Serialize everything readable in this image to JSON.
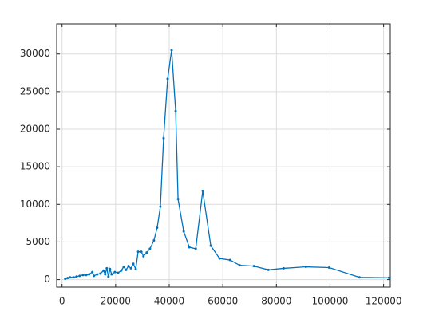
{
  "chart_data": {
    "type": "line",
    "x": [
      1200,
      2100,
      3000,
      4200,
      5400,
      6600,
      7800,
      9000,
      10100,
      11300,
      11900,
      13100,
      14300,
      15500,
      16100,
      16700,
      17300,
      17900,
      18500,
      19700,
      20900,
      22100,
      23000,
      23900,
      24800,
      25700,
      26600,
      27500,
      28400,
      29600,
      30400,
      31600,
      32800,
      34300,
      35500,
      36700,
      37900,
      39400,
      40900,
      42400,
      43300,
      45400,
      47500,
      49900,
      52500,
      55500,
      58800,
      62700,
      66300,
      71600,
      77000,
      82700,
      91000,
      99700,
      111000,
      122000
    ],
    "series": [
      {
        "color": "#0072bd",
        "values": [
          100,
          200,
          300,
          300,
          400,
          500,
          600,
          600,
          700,
          1000,
          500,
          700,
          800,
          1200,
          700,
          1500,
          400,
          1400,
          700,
          1000,
          900,
          1200,
          1700,
          1300,
          1800,
          1500,
          2100,
          1400,
          3700,
          3700,
          3100,
          3600,
          4100,
          5200,
          6900,
          9700,
          18800,
          26700,
          30500,
          22400,
          10700,
          6400,
          4300,
          4100,
          11800,
          4500,
          2800,
          2600,
          1900,
          1800,
          1300,
          1500,
          1700,
          1600,
          300,
          250
        ]
      }
    ],
    "xlim": [
      -2000,
      122500
    ],
    "ylim": [
      -1000,
      34000
    ],
    "xticks": [
      0,
      20000,
      40000,
      60000,
      80000,
      100000,
      120000
    ],
    "yticks": [
      0,
      5000,
      10000,
      15000,
      20000,
      25000,
      30000
    ],
    "grid": true
  }
}
